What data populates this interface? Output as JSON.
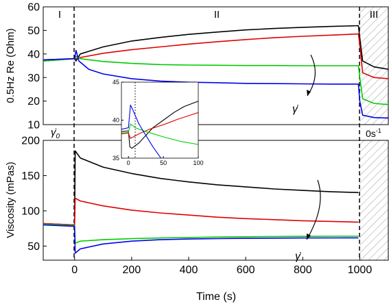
{
  "chart_data": [
    {
      "type": "line",
      "panel": "top",
      "ylabel": "0.5Hz Re (Ohm)",
      "xlim": [
        -110,
        1100
      ],
      "ylim": [
        10,
        60
      ],
      "yticks": [
        10,
        20,
        30,
        40,
        50,
        60
      ],
      "region_labels": [
        "I",
        "II",
        "III"
      ],
      "annotations": {
        "shear_rate": "γ̇",
        "shear_rate_zero": "γ̇₀",
        "zero_rate": "0s⁻¹"
      },
      "region_boundaries": [
        0,
        1000
      ],
      "hatched_region": [
        1000,
        1100
      ],
      "series": [
        {
          "color": "#000000",
          "points": [
            [
              -110,
              37
            ],
            [
              0,
              38
            ],
            [
              5,
              37
            ],
            [
              20,
              40
            ],
            [
              100,
              43
            ],
            [
              200,
              45.5
            ],
            [
              300,
              47
            ],
            [
              400,
              48.3
            ],
            [
              500,
              49.3
            ],
            [
              600,
              50.2
            ],
            [
              700,
              50.8
            ],
            [
              800,
              51.3
            ],
            [
              900,
              51.7
            ],
            [
              995,
              52
            ],
            [
              1000,
              47
            ],
            [
              1010,
              37
            ],
            [
              1050,
              34.5
            ],
            [
              1100,
              33.5
            ]
          ]
        },
        {
          "color": "#e00000",
          "points": [
            [
              -110,
              37.5
            ],
            [
              0,
              38
            ],
            [
              5,
              38
            ],
            [
              20,
              38.5
            ],
            [
              100,
              40.3
            ],
            [
              200,
              41.8
            ],
            [
              300,
              43
            ],
            [
              400,
              44.2
            ],
            [
              500,
              45.2
            ],
            [
              600,
              46.1
            ],
            [
              700,
              46.9
            ],
            [
              800,
              47.5
            ],
            [
              900,
              48
            ],
            [
              995,
              48.5
            ],
            [
              1000,
              44
            ],
            [
              1010,
              32
            ],
            [
              1050,
              30
            ],
            [
              1100,
              29.5
            ]
          ]
        },
        {
          "color": "#00cc00",
          "points": [
            [
              -110,
              37
            ],
            [
              0,
              38
            ],
            [
              5,
              39
            ],
            [
              20,
              38
            ],
            [
              100,
              36.8
            ],
            [
              200,
              36
            ],
            [
              300,
              35.5
            ],
            [
              400,
              35.3
            ],
            [
              500,
              35.2
            ],
            [
              600,
              35.1
            ],
            [
              700,
              35.1
            ],
            [
              800,
              35
            ],
            [
              900,
              35
            ],
            [
              995,
              35
            ],
            [
              1000,
              30
            ],
            [
              1010,
              21
            ],
            [
              1050,
              19
            ],
            [
              1100,
              18.5
            ]
          ]
        },
        {
          "color": "#0000ee",
          "points": [
            [
              -110,
              37.5
            ],
            [
              0,
              38
            ],
            [
              5,
              41.5
            ],
            [
              15,
              37
            ],
            [
              50,
              33.5
            ],
            [
              100,
              31.5
            ],
            [
              200,
              29.5
            ],
            [
              300,
              28.5
            ],
            [
              400,
              28
            ],
            [
              500,
              27.8
            ],
            [
              600,
              27.5
            ],
            [
              700,
              27.4
            ],
            [
              800,
              27.3
            ],
            [
              900,
              27.2
            ],
            [
              995,
              27.2
            ],
            [
              1000,
              20
            ],
            [
              1010,
              14
            ],
            [
              1050,
              13
            ],
            [
              1100,
              12.8
            ]
          ]
        }
      ]
    },
    {
      "type": "line",
      "panel": "bottom",
      "xlabel": "Time (s)",
      "ylabel": "Viscosity (mPas)",
      "xlim": [
        -110,
        1100
      ],
      "ylim": [
        30,
        200
      ],
      "xticks": [
        0,
        200,
        400,
        600,
        800,
        1000
      ],
      "yticks": [
        50,
        100,
        150,
        200
      ],
      "series": [
        {
          "color": "#000000",
          "points": [
            [
              -110,
              82
            ],
            [
              0,
              80
            ],
            [
              2,
              185
            ],
            [
              20,
              175
            ],
            [
              100,
              162
            ],
            [
              200,
              153
            ],
            [
              300,
              146
            ],
            [
              400,
              141
            ],
            [
              500,
              137
            ],
            [
              600,
              134
            ],
            [
              700,
              131
            ],
            [
              800,
              129
            ],
            [
              900,
              127
            ],
            [
              995,
              126
            ]
          ]
        },
        {
          "color": "#e00000",
          "points": [
            [
              -110,
              82
            ],
            [
              0,
              80
            ],
            [
              2,
              118
            ],
            [
              20,
              114
            ],
            [
              100,
              107
            ],
            [
              200,
              101
            ],
            [
              300,
              97
            ],
            [
              400,
              94
            ],
            [
              500,
              91
            ],
            [
              600,
              89
            ],
            [
              700,
              87.5
            ],
            [
              800,
              86
            ],
            [
              900,
              85
            ],
            [
              995,
              84
            ]
          ]
        },
        {
          "color": "#00cc00",
          "points": [
            [
              -110,
              81
            ],
            [
              0,
              79
            ],
            [
              2,
              54
            ],
            [
              20,
              57
            ],
            [
              100,
              59
            ],
            [
              200,
              60.5
            ],
            [
              300,
              61.5
            ],
            [
              400,
              62.2
            ],
            [
              500,
              62.8
            ],
            [
              600,
              63.2
            ],
            [
              700,
              63.6
            ],
            [
              800,
              63.8
            ],
            [
              900,
              64
            ],
            [
              995,
              64
            ]
          ]
        },
        {
          "color": "#0000ee",
          "points": [
            [
              -110,
              80
            ],
            [
              0,
              78
            ],
            [
              2,
              40
            ],
            [
              20,
              46
            ],
            [
              100,
              53
            ],
            [
              200,
              57
            ],
            [
              300,
              59
            ],
            [
              400,
              60
            ],
            [
              500,
              60.6
            ],
            [
              600,
              61
            ],
            [
              700,
              61.3
            ],
            [
              800,
              61.5
            ],
            [
              900,
              61.6
            ],
            [
              995,
              61.7
            ]
          ]
        }
      ]
    },
    {
      "type": "line",
      "panel": "inset",
      "xlim": [
        -10,
        100
      ],
      "ylim": [
        35,
        45
      ],
      "xticks": [
        0,
        50,
        100
      ],
      "yticks": [
        35,
        40,
        45
      ],
      "series": [
        {
          "color": "#000000",
          "points": [
            [
              -10,
              38.5
            ],
            [
              0,
              38.6
            ],
            [
              2,
              36.5
            ],
            [
              5,
              36.3
            ],
            [
              15,
              37
            ],
            [
              25,
              38
            ],
            [
              35,
              39
            ],
            [
              50,
              40
            ],
            [
              65,
              41
            ],
            [
              80,
              41.8
            ],
            [
              100,
              42.5
            ]
          ]
        },
        {
          "color": "#e00000",
          "points": [
            [
              -10,
              38.2
            ],
            [
              0,
              38.3
            ],
            [
              3,
              37.6
            ],
            [
              15,
              38.2
            ],
            [
              30,
              38.8
            ],
            [
              50,
              39.4
            ],
            [
              70,
              40.1
            ],
            [
              100,
              41
            ]
          ]
        },
        {
          "color": "#00cc00",
          "points": [
            [
              -10,
              38.3
            ],
            [
              0,
              38.4
            ],
            [
              3,
              39.5
            ],
            [
              10,
              39
            ],
            [
              25,
              38.5
            ],
            [
              50,
              37.8
            ],
            [
              75,
              37.2
            ],
            [
              100,
              36.8
            ]
          ]
        },
        {
          "color": "#0000ee",
          "points": [
            [
              -10,
              38.8
            ],
            [
              0,
              39
            ],
            [
              3,
              42
            ],
            [
              8,
              41
            ],
            [
              15,
              39.5
            ],
            [
              25,
              38
            ],
            [
              35,
              36.5
            ],
            [
              45,
              35.2
            ],
            [
              50,
              34.5
            ]
          ]
        }
      ]
    }
  ],
  "labels": {
    "time_axis": "Time (s)",
    "re_axis": "0.5Hz Re (Ohm)",
    "visc_axis": "Viscosity (mPas)",
    "region_I": "I",
    "region_II": "II",
    "region_III": "III",
    "gamma_dot": "γ̇",
    "gamma_zero_base": "γ̇",
    "gamma_zero_sub": "0",
    "zero_rate_base": "0s",
    "zero_rate_sup": "-1"
  }
}
